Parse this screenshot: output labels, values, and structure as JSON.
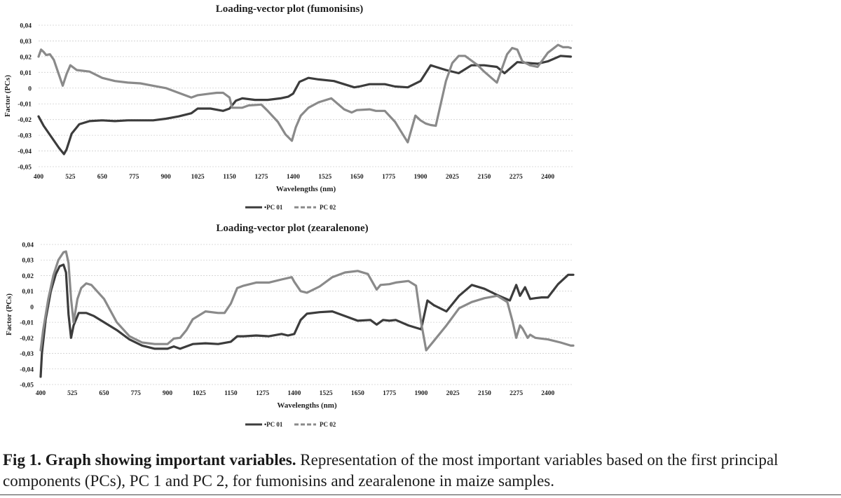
{
  "chart_data": [
    {
      "type": "line",
      "title": "Loading-vector plot (fumonisins)",
      "xlabel": "Wavelengths (nm)",
      "ylabel": "Factor (PCs)",
      "xlim": [
        400,
        2500
      ],
      "ylim": [
        -0.05,
        0.04
      ],
      "x_ticks": [
        400,
        525,
        650,
        775,
        900,
        1025,
        1150,
        1275,
        1400,
        1525,
        1650,
        1775,
        1900,
        2025,
        2150,
        2275,
        2400
      ],
      "y_ticks": [
        "0,04",
        "0,03",
        "0,02",
        "0,01",
        "0",
        "-0,01",
        "-0,02",
        "-0,03",
        "-0,04",
        "-0,05"
      ],
      "y_tick_values": [
        0.04,
        0.03,
        0.02,
        0.01,
        0,
        -0.01,
        -0.02,
        -0.03,
        -0.04,
        -0.05
      ],
      "grid": true,
      "legend": "bottom",
      "legend_labels": [
        "PC 01",
        "PC 02"
      ],
      "series": [
        {
          "name": "PC 01",
          "color": "#3c3c3c",
          "x": [
            400,
            420,
            450,
            480,
            500,
            510,
            530,
            560,
            600,
            650,
            700,
            750,
            800,
            850,
            900,
            950,
            1000,
            1025,
            1075,
            1125,
            1150,
            1175,
            1200,
            1250,
            1300,
            1350,
            1380,
            1400,
            1425,
            1460,
            1500,
            1560,
            1600,
            1640,
            1660,
            1700,
            1760,
            1800,
            1850,
            1900,
            1940,
            1960,
            2000,
            2050,
            2100,
            2150,
            2200,
            2230,
            2280,
            2320,
            2360,
            2400,
            2450,
            2490
          ],
          "y": [
            -0.018,
            -0.024,
            -0.031,
            -0.038,
            -0.042,
            -0.039,
            -0.029,
            -0.023,
            -0.021,
            -0.0205,
            -0.021,
            -0.0205,
            -0.0205,
            -0.0205,
            -0.0195,
            -0.018,
            -0.016,
            -0.013,
            -0.013,
            -0.0145,
            -0.013,
            -0.008,
            -0.0065,
            -0.0075,
            -0.0075,
            -0.0065,
            -0.0055,
            -0.0035,
            0.004,
            0.0065,
            0.0055,
            0.0045,
            0.0025,
            0.0005,
            0.001,
            0.0025,
            0.0025,
            0.001,
            0.0005,
            0.0045,
            0.0145,
            0.0135,
            0.0115,
            0.0095,
            0.0145,
            0.0145,
            0.0135,
            0.0095,
            0.0165,
            0.016,
            0.0155,
            0.017,
            0.0205,
            0.02
          ]
        },
        {
          "name": "PC 02",
          "color": "#8a8a8a",
          "x": [
            400,
            410,
            420,
            430,
            445,
            460,
            480,
            495,
            510,
            525,
            550,
            600,
            650,
            700,
            750,
            800,
            850,
            900,
            950,
            1000,
            1025,
            1075,
            1100,
            1125,
            1150,
            1160,
            1200,
            1225,
            1275,
            1300,
            1340,
            1370,
            1395,
            1410,
            1430,
            1460,
            1500,
            1550,
            1600,
            1630,
            1650,
            1700,
            1725,
            1760,
            1800,
            1850,
            1880,
            1900,
            1920,
            1940,
            1960,
            2000,
            2025,
            2050,
            2075,
            2100,
            2125,
            2150,
            2200,
            2240,
            2260,
            2280,
            2300,
            2330,
            2360,
            2400,
            2440,
            2460,
            2480,
            2490
          ],
          "y": [
            0.02,
            0.0245,
            0.023,
            0.021,
            0.0215,
            0.018,
            0.0085,
            0.0015,
            0.009,
            0.0145,
            0.0115,
            0.0105,
            0.0065,
            0.0045,
            0.0035,
            0.003,
            0.0015,
            0.0,
            -0.003,
            -0.006,
            -0.0045,
            -0.0035,
            -0.003,
            -0.003,
            -0.006,
            -0.0125,
            -0.0125,
            -0.011,
            -0.0105,
            -0.0145,
            -0.0215,
            -0.0295,
            -0.0335,
            -0.025,
            -0.0175,
            -0.0125,
            -0.009,
            -0.0065,
            -0.0135,
            -0.0155,
            -0.014,
            -0.0135,
            -0.0145,
            -0.0145,
            -0.0215,
            -0.0345,
            -0.0175,
            -0.0205,
            -0.0225,
            -0.0235,
            -0.024,
            0.0045,
            0.016,
            0.0205,
            0.0205,
            0.0175,
            0.0145,
            0.0105,
            0.0035,
            0.0215,
            0.0255,
            0.0245,
            0.017,
            0.0145,
            0.0135,
            0.0225,
            0.0275,
            0.026,
            0.026,
            0.0255
          ]
        }
      ]
    },
    {
      "type": "line",
      "title": "Loading-vector plot (zearalenone)",
      "xlabel": "Wavelengths (nm)",
      "ylabel": "Factor (PCs)",
      "xlim": [
        400,
        2500
      ],
      "ylim": [
        -0.05,
        0.04
      ],
      "x_ticks": [
        400,
        525,
        650,
        775,
        900,
        1025,
        1150,
        1275,
        1400,
        1525,
        1650,
        1775,
        1900,
        2025,
        2150,
        2275,
        2400
      ],
      "y_ticks": [
        "0,04",
        "0,03",
        "0,02",
        "0,01",
        "0",
        "-0,01",
        "-0,02",
        "-0,03",
        "-0,04",
        "-0,05"
      ],
      "y_tick_values": [
        0.04,
        0.03,
        0.02,
        0.01,
        0,
        -0.01,
        -0.02,
        -0.03,
        -0.04,
        -0.05
      ],
      "grid": true,
      "legend": "bottom",
      "legend_labels": [
        "PC 01",
        "PC 02"
      ],
      "series": [
        {
          "name": "PC 01",
          "color": "#3c3c3c",
          "x": [
            400,
            405,
            420,
            440,
            460,
            475,
            490,
            500,
            510,
            520,
            530,
            550,
            580,
            610,
            650,
            700,
            750,
            800,
            850,
            900,
            925,
            950,
            1000,
            1050,
            1100,
            1150,
            1175,
            1200,
            1250,
            1300,
            1350,
            1375,
            1400,
            1425,
            1450,
            1500,
            1550,
            1600,
            1650,
            1700,
            1725,
            1750,
            1775,
            1800,
            1850,
            1900,
            1925,
            1950,
            2000,
            2050,
            2100,
            2150,
            2200,
            2250,
            2275,
            2290,
            2310,
            2330,
            2350,
            2375,
            2400,
            2440,
            2480,
            2500
          ],
          "y": [
            -0.045,
            -0.03,
            -0.008,
            0.01,
            0.021,
            0.026,
            0.027,
            0.022,
            -0.005,
            -0.02,
            -0.012,
            -0.004,
            -0.004,
            -0.006,
            -0.01,
            -0.015,
            -0.021,
            -0.025,
            -0.027,
            -0.027,
            -0.0255,
            -0.027,
            -0.024,
            -0.0235,
            -0.024,
            -0.0225,
            -0.019,
            -0.019,
            -0.0185,
            -0.019,
            -0.0175,
            -0.0185,
            -0.0175,
            -0.0085,
            -0.0045,
            -0.0035,
            -0.003,
            -0.006,
            -0.009,
            -0.0085,
            -0.0115,
            -0.0085,
            -0.009,
            -0.0085,
            -0.012,
            -0.0145,
            0.004,
            0.001,
            -0.003,
            0.007,
            0.014,
            0.0115,
            0.0075,
            0.004,
            0.014,
            0.007,
            0.0125,
            0.005,
            0.0055,
            0.006,
            0.006,
            0.0145,
            0.0205,
            0.0205
          ]
        },
        {
          "name": "PC 02",
          "color": "#8a8a8a",
          "x": [
            400,
            410,
            430,
            450,
            470,
            490,
            500,
            510,
            520,
            530,
            545,
            560,
            580,
            600,
            650,
            700,
            750,
            800,
            850,
            900,
            925,
            950,
            975,
            1000,
            1050,
            1100,
            1125,
            1150,
            1175,
            1200,
            1250,
            1300,
            1350,
            1390,
            1400,
            1425,
            1450,
            1500,
            1550,
            1600,
            1650,
            1690,
            1725,
            1740,
            1775,
            1800,
            1850,
            1880,
            1900,
            1920,
            1950,
            2000,
            2050,
            2100,
            2150,
            2200,
            2240,
            2260,
            2275,
            2290,
            2300,
            2320,
            2330,
            2350,
            2400,
            2450,
            2490,
            2500
          ],
          "y": [
            -0.028,
            -0.015,
            0.005,
            0.02,
            0.03,
            0.035,
            0.0355,
            0.028,
            0.005,
            -0.01,
            0.005,
            0.012,
            0.015,
            0.014,
            0.005,
            -0.01,
            -0.019,
            -0.023,
            -0.024,
            -0.024,
            -0.0205,
            -0.02,
            -0.015,
            -0.008,
            -0.003,
            -0.004,
            -0.004,
            0.002,
            0.012,
            0.0135,
            0.0155,
            0.0155,
            0.0175,
            0.019,
            0.016,
            0.01,
            0.009,
            0.013,
            0.019,
            0.022,
            0.023,
            0.021,
            0.011,
            0.014,
            0.0145,
            0.0155,
            0.0165,
            0.0135,
            -0.01,
            -0.028,
            -0.022,
            -0.012,
            -0.001,
            0.003,
            0.0055,
            0.007,
            0.003,
            -0.009,
            -0.02,
            -0.012,
            -0.014,
            -0.02,
            -0.018,
            -0.02,
            -0.021,
            -0.023,
            -0.025,
            -0.025
          ]
        }
      ]
    }
  ],
  "caption": {
    "label": "Fig 1. Graph showing important variables.",
    "text": " Representation of the most important variables based on the first principal components (PCs), PC 1 and PC 2, for fumonisins and zearalenone in maize samples."
  }
}
